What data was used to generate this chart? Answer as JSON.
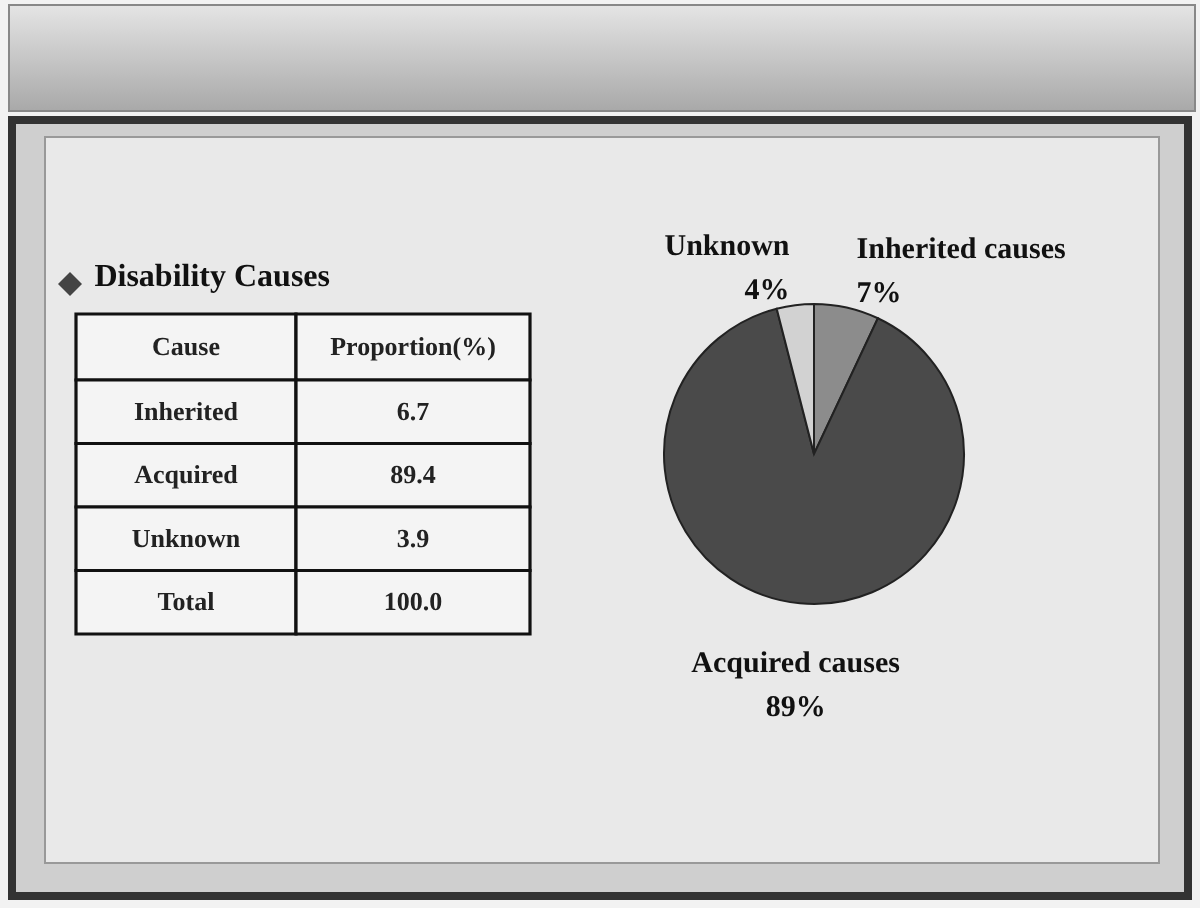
{
  "chart_data": [
    {
      "type": "other",
      "title": "Disability Causes",
      "xlabel": "Cause",
      "ylabel": "Proportion(%)",
      "categories": [
        "Inherited",
        "Acquired",
        "Unknown",
        "Total"
      ],
      "value_labels": [
        "6.7",
        "89.4",
        "3.9",
        "100.0"
      ]
    },
    {
      "type": "pie",
      "categories": [
        "Inherited causes",
        "Acquired causes",
        "Unknown"
      ],
      "values": [
        7,
        89,
        4
      ],
      "colors": [
        "#8c8c8c",
        "#4a4a4a",
        "#d2d2d2"
      ],
      "value_labels": [
        "7%",
        "89%",
        "4%"
      ]
    }
  ]
}
